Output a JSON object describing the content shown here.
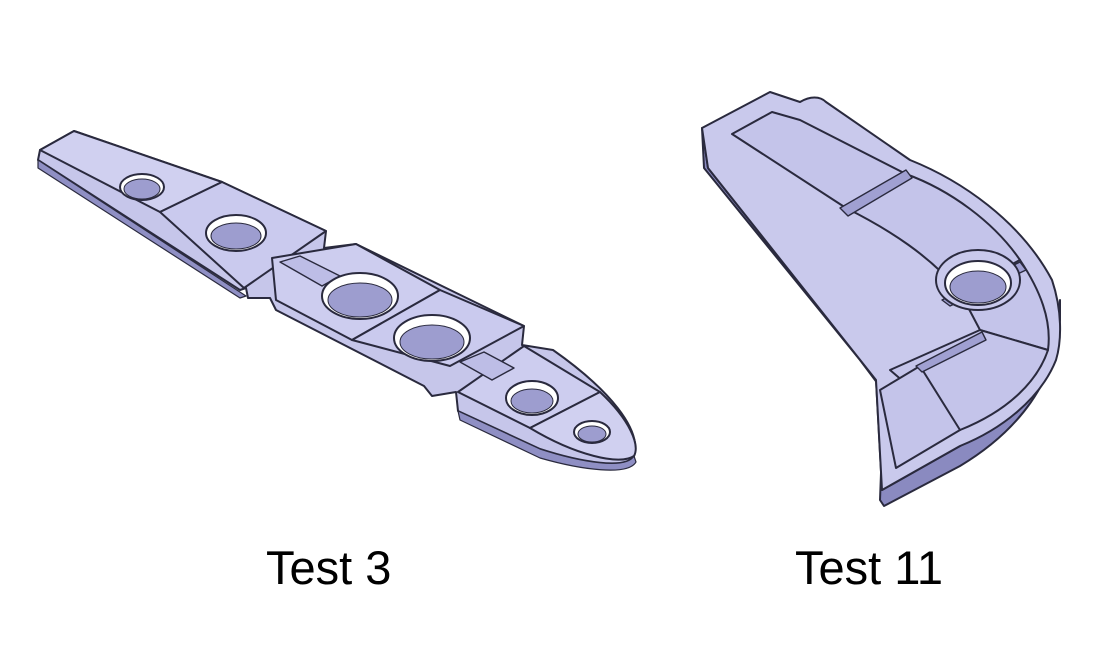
{
  "figures": [
    {
      "label": "Test 3"
    },
    {
      "label": "Test 11"
    }
  ],
  "colors": {
    "part_face": "#c9c9ec",
    "part_floor": "#c4c4ea",
    "part_wall": "#8f8fc4",
    "part_edge": "#2a2a3e",
    "background": "#ffffff"
  }
}
